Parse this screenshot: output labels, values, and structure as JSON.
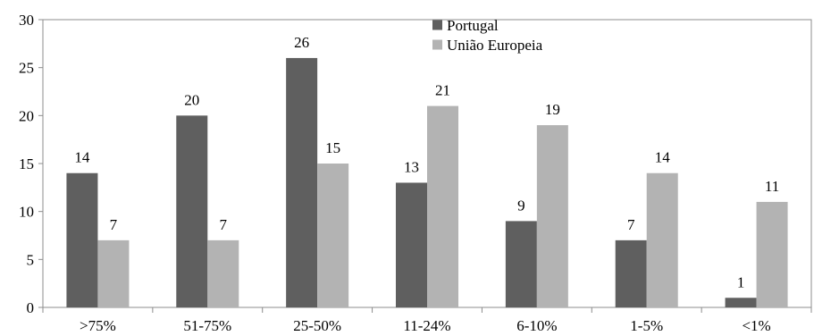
{
  "chart_data": {
    "type": "bar",
    "title": "",
    "xlabel": "",
    "ylabel": "",
    "categories": [
      ">75%",
      "51-75%",
      "25-50%",
      "11-24%",
      "6-10%",
      "1-5%",
      "<1%"
    ],
    "series": [
      {
        "name": "Portugal",
        "values": [
          14,
          20,
          26,
          13,
          9,
          7,
          1
        ],
        "color": "#5f5f5f"
      },
      {
        "name": "União Europeia",
        "values": [
          7,
          7,
          15,
          21,
          19,
          14,
          11
        ],
        "color": "#b3b3b3"
      }
    ],
    "ylim": [
      0,
      30
    ],
    "yticks": [
      0,
      5,
      10,
      15,
      20,
      25,
      30
    ],
    "grid": false,
    "legend": "top-center",
    "data_labels": true
  }
}
